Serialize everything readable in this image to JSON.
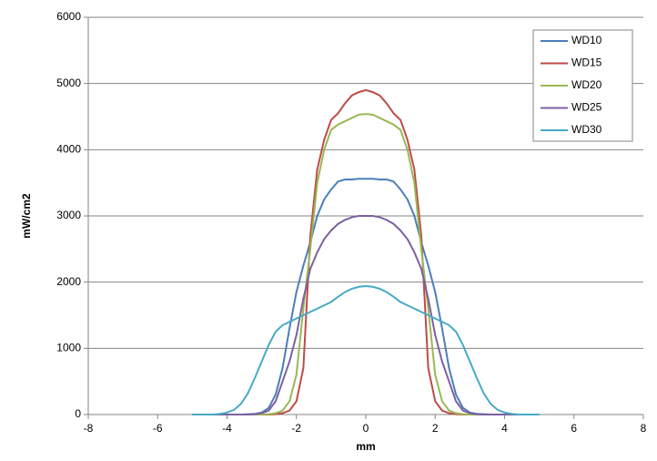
{
  "chart_data": {
    "type": "line",
    "x_label": "mm",
    "y_label": "mW/cm2",
    "x": [
      -5,
      -4.8,
      -4.6,
      -4.4,
      -4.2,
      -4,
      -3.8,
      -3.6,
      -3.4,
      -3.2,
      -3,
      -2.8,
      -2.6,
      -2.4,
      -2.2,
      -2,
      -1.8,
      -1.6,
      -1.4,
      -1.2,
      -1,
      -0.8,
      -0.6,
      -0.4,
      -0.2,
      0,
      0.2,
      0.4,
      0.6,
      0.8,
      1,
      1.2,
      1.4,
      1.6,
      1.8,
      2,
      2.2,
      2.4,
      2.6,
      2.8,
      3,
      3.2,
      3.4,
      3.6,
      3.8,
      4,
      4.2,
      4.4,
      4.6,
      4.8,
      5
    ],
    "series": [
      {
        "name": "WD10",
        "color": "#4a7ebb",
        "values": [
          0,
          0,
          0,
          0,
          0,
          0,
          0,
          0,
          5,
          10,
          30,
          100,
          300,
          700,
          1300,
          1850,
          2250,
          2600,
          3000,
          3250,
          3400,
          3520,
          3550,
          3550,
          3560,
          3560,
          3560,
          3550,
          3550,
          3520,
          3400,
          3250,
          3000,
          2600,
          2250,
          1850,
          1300,
          700,
          300,
          100,
          30,
          10,
          5,
          0,
          0,
          0,
          0,
          0,
          0,
          0,
          0
        ]
      },
      {
        "name": "WD15",
        "color": "#be4b48",
        "values": [
          0,
          0,
          0,
          0,
          0,
          0,
          0,
          0,
          0,
          0,
          0,
          0,
          5,
          20,
          60,
          200,
          700,
          2700,
          3700,
          4150,
          4450,
          4550,
          4700,
          4820,
          4870,
          4900,
          4870,
          4820,
          4700,
          4550,
          4450,
          4150,
          3700,
          2700,
          700,
          200,
          60,
          20,
          5,
          0,
          0,
          0,
          0,
          0,
          0,
          0,
          0,
          0,
          0,
          0,
          0
        ]
      },
      {
        "name": "WD20",
        "color": "#98b954",
        "values": [
          0,
          0,
          0,
          0,
          0,
          0,
          0,
          0,
          0,
          0,
          0,
          5,
          20,
          60,
          200,
          600,
          1600,
          2500,
          3500,
          4000,
          4300,
          4380,
          4430,
          4480,
          4530,
          4540,
          4530,
          4480,
          4430,
          4380,
          4300,
          4000,
          3500,
          2500,
          1600,
          600,
          200,
          60,
          20,
          5,
          0,
          0,
          0,
          0,
          0,
          0,
          0,
          0,
          0,
          0,
          0
        ]
      },
      {
        "name": "WD25",
        "color": "#7d60a0",
        "values": [
          0,
          0,
          0,
          0,
          0,
          0,
          0,
          0,
          0,
          5,
          20,
          60,
          200,
          500,
          800,
          1200,
          1750,
          2200,
          2450,
          2650,
          2780,
          2880,
          2940,
          2980,
          3000,
          3000,
          3000,
          2980,
          2940,
          2880,
          2780,
          2650,
          2450,
          2200,
          1750,
          1200,
          800,
          500,
          200,
          60,
          20,
          5,
          0,
          0,
          0,
          0,
          0,
          0,
          0,
          0,
          0
        ]
      },
      {
        "name": "WD30",
        "color": "#46aac5",
        "values": [
          0,
          0,
          0,
          0,
          10,
          30,
          70,
          160,
          320,
          550,
          800,
          1050,
          1250,
          1350,
          1400,
          1450,
          1500,
          1550,
          1600,
          1650,
          1700,
          1780,
          1850,
          1900,
          1930,
          1940,
          1930,
          1900,
          1850,
          1780,
          1700,
          1650,
          1600,
          1550,
          1500,
          1450,
          1400,
          1350,
          1250,
          1050,
          800,
          550,
          320,
          160,
          70,
          30,
          10,
          0,
          0,
          0,
          0
        ]
      }
    ],
    "xlim": [
      -8,
      8
    ],
    "xticks": [
      -8,
      -6,
      -4,
      -2,
      0,
      2,
      4,
      6,
      8
    ],
    "ylim": [
      0,
      6000
    ],
    "yticks": [
      0,
      1000,
      2000,
      3000,
      4000,
      5000,
      6000
    ],
    "grid": true,
    "legend": "upper right"
  }
}
